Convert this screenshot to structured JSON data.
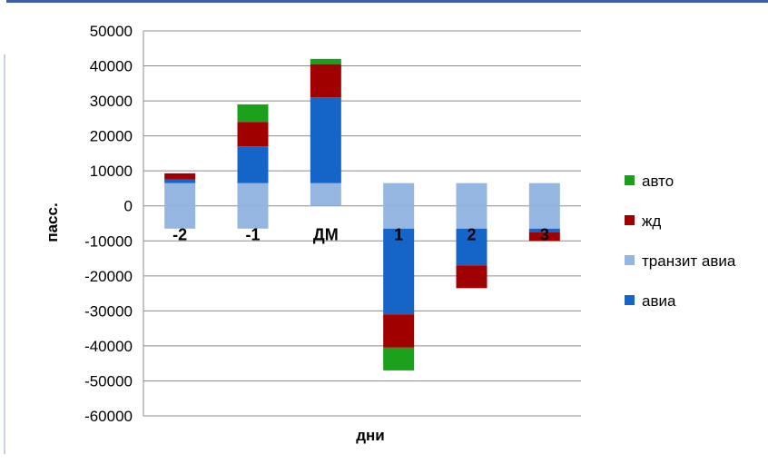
{
  "chart_data": {
    "type": "bar",
    "stacked": true,
    "title": "",
    "xlabel": "дни",
    "ylabel": "пасс.",
    "ylim": [
      -60000,
      50000
    ],
    "yticks": [
      50000,
      40000,
      30000,
      20000,
      10000,
      0,
      -10000,
      -20000,
      -30000,
      -40000,
      -50000,
      -60000
    ],
    "categories": [
      "-2",
      "-1",
      "ДМ",
      "1",
      "2",
      "3"
    ],
    "grid": true,
    "legend_position": "right",
    "series": [
      {
        "name": "авиа",
        "color": "#1565c8",
        "values": [
          1000,
          10500,
          24500,
          -24500,
          -10500,
          -1000
        ]
      },
      {
        "name": "транзит авиа",
        "color": "#95b6e0",
        "values": [
          6500,
          6500,
          6500,
          6500,
          6500,
          6500
        ],
        "neg_values": [
          -6500,
          -6500,
          0,
          -6500,
          -6500,
          -6500
        ]
      },
      {
        "name": "жд",
        "color": "#a00000",
        "values": [
          1800,
          7000,
          9500,
          -9500,
          -6500,
          -2500
        ]
      },
      {
        "name": "авто",
        "color": "#1aa01a",
        "values": [
          0,
          5000,
          1500,
          -6500,
          0,
          0
        ]
      }
    ],
    "legend_order": [
      "авто",
      "жд",
      "транзит авиа",
      "авиа"
    ]
  }
}
